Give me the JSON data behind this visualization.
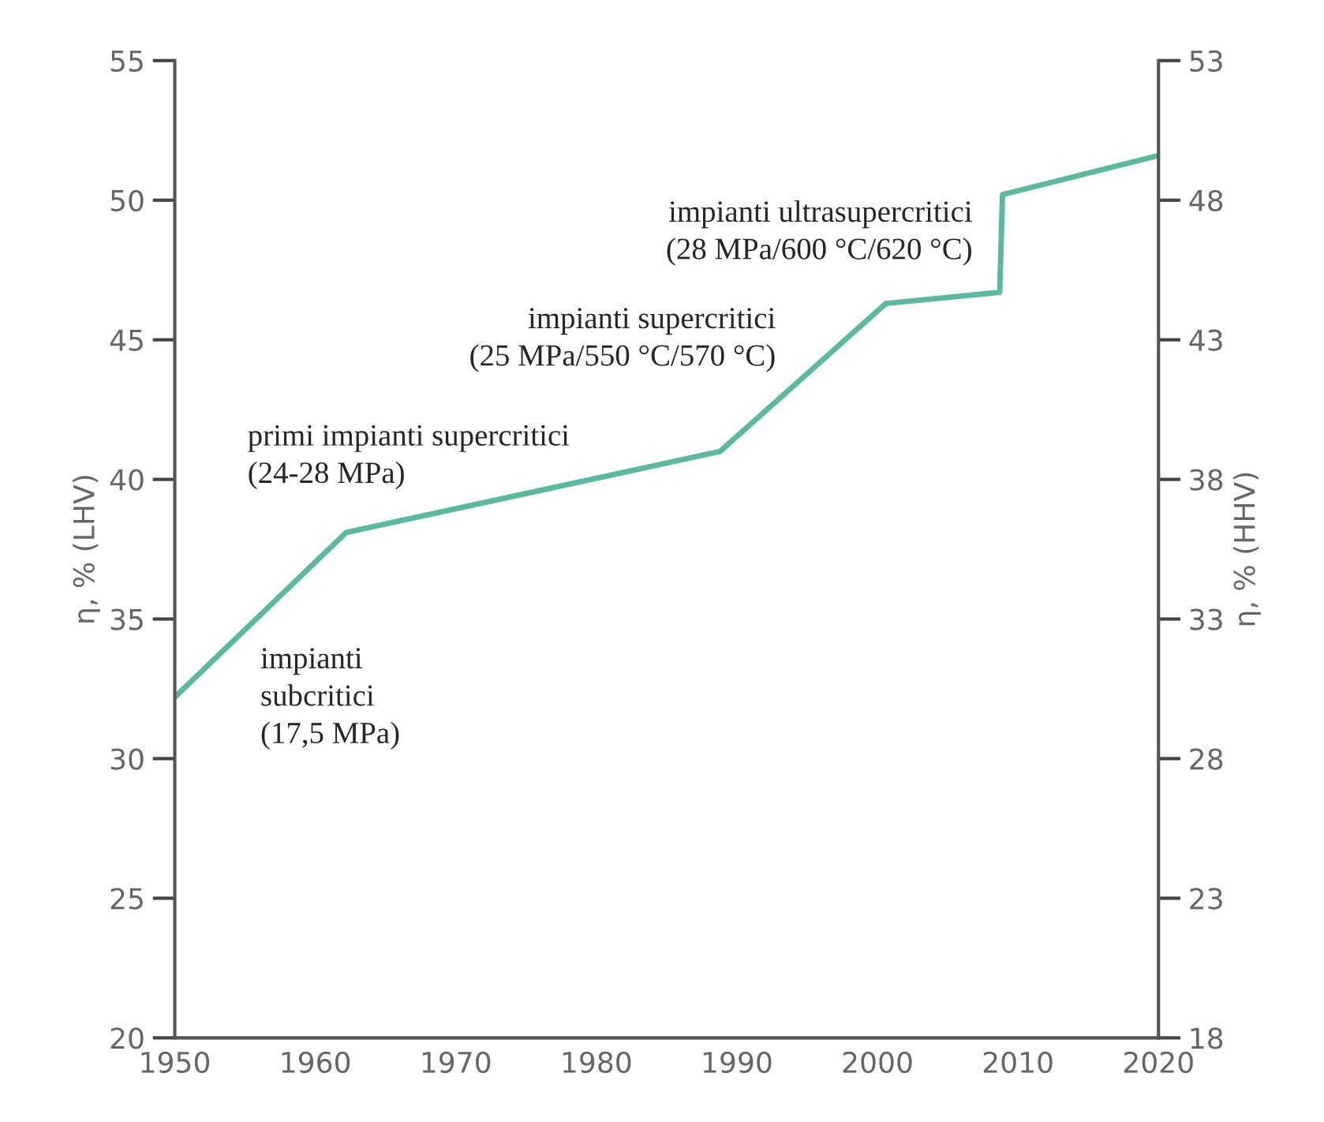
{
  "chart_data": {
    "type": "line",
    "x": [
      1950,
      1962.2,
      1988.8,
      2000.6,
      2008.7,
      2008.9,
      2020
    ],
    "series": [
      {
        "color": "#5cb89f",
        "values": [
          32.2,
          38.1,
          41.0,
          46.3,
          46.7,
          50.2,
          51.6
        ]
      }
    ],
    "xlim": [
      1950,
      2020
    ],
    "xticks": [
      1950,
      1960,
      1970,
      1980,
      1990,
      2000,
      2010,
      2020
    ],
    "ylim": [
      20,
      55
    ],
    "yticks": [
      20,
      25,
      30,
      35,
      40,
      45,
      50,
      55
    ],
    "y2lim": [
      18,
      53
    ],
    "y2ticks": [
      18,
      23,
      28,
      33,
      38,
      43,
      48,
      53
    ],
    "ylabel": "η, % (LHV)",
    "y2label": "η, % (HHV)",
    "grid": false,
    "marker": "none",
    "line_style": "solid",
    "annotations": [
      "impianti\nsubcritici\n(17,5 MPa)",
      "primi impianti supercritici\n(24-28 MPa)",
      "impianti supercritici\n(25 MPa/550 °C/570 °C)",
      "impianti ultrasupercritici\n(28 MPa/600 °C/620 °C)"
    ]
  }
}
